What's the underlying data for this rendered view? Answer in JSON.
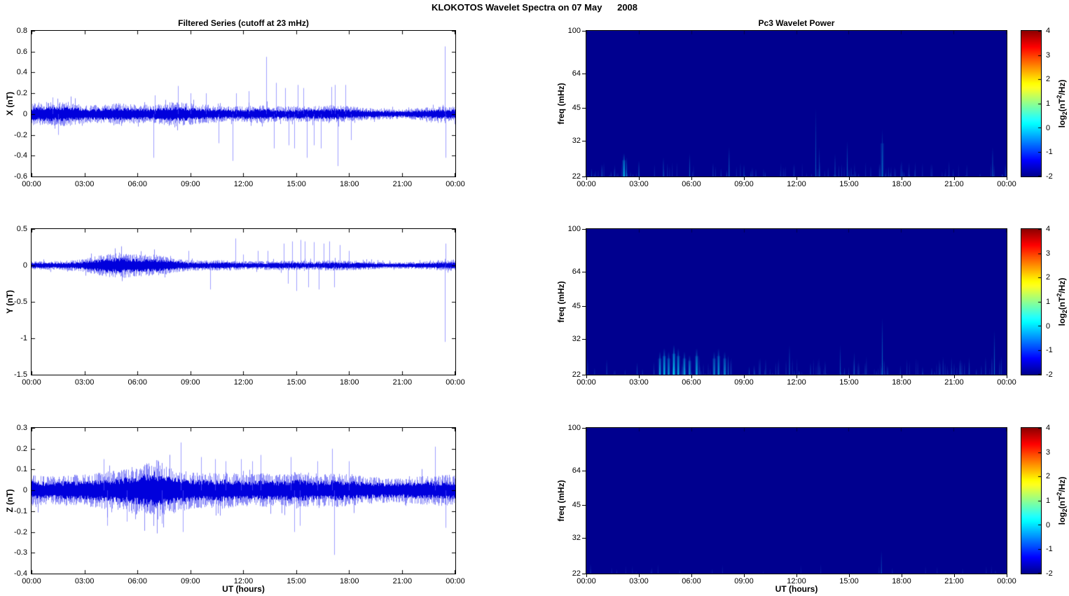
{
  "figure_title": "KLOKOTOS Wavelet Spectra on 07 May      2008",
  "left_column_title": "Filtered Series (cutoff at 23 mHz)",
  "right_column_title": "Pc3 Wavelet Power",
  "x_axis": {
    "label": "UT (hours)",
    "tick_hours": [
      0,
      3,
      6,
      9,
      12,
      15,
      18,
      21,
      24
    ],
    "tick_labels": [
      "00:00",
      "03:00",
      "06:00",
      "09:00",
      "12:00",
      "15:00",
      "18:00",
      "21:00",
      "00:00"
    ],
    "range_hours": [
      0,
      24
    ]
  },
  "colorbar": {
    "colormap": "jet",
    "range": [
      -2,
      4
    ],
    "tick_labels": [
      "4",
      "3",
      "2",
      "1",
      "0",
      "-1",
      "-2"
    ],
    "label_parts": {
      "prefix": "log",
      "sub": "2",
      "mid": "(nT",
      "sup": "2",
      "suffix": "/Hz)"
    }
  },
  "colors": {
    "series_line": "#0000EE",
    "spike_line": "#6060FF",
    "spectrogram_background": "#00008F",
    "axis": "#000000"
  },
  "chart_data": [
    {
      "type": "line",
      "panel": "X filtered series",
      "ylabel": "X (nT)",
      "ylim": [
        -0.6,
        0.8
      ],
      "ytick_labels": [
        "0.8",
        "0.6",
        "0.4",
        "0.2",
        "0",
        "-0.2",
        "-0.4",
        "-0.6"
      ],
      "x_range_hours": [
        0,
        24
      ],
      "noise_envelope": {
        "hours": [
          0,
          1,
          2,
          3,
          4,
          5,
          6,
          7,
          8,
          9,
          10,
          11,
          12,
          13,
          14,
          15,
          16,
          17,
          18,
          19,
          20,
          21,
          22,
          23,
          24
        ],
        "amplitude_nT": [
          0.07,
          0.08,
          0.08,
          0.06,
          0.06,
          0.07,
          0.06,
          0.06,
          0.08,
          0.07,
          0.06,
          0.05,
          0.05,
          0.06,
          0.05,
          0.05,
          0.05,
          0.06,
          0.05,
          0.04,
          0.035,
          0.03,
          0.04,
          0.05,
          0.05
        ]
      },
      "spikes_nT": [
        [
          1.2,
          0.16
        ],
        [
          1.5,
          -0.2
        ],
        [
          6.9,
          -0.42
        ],
        [
          7.0,
          0.18
        ],
        [
          8.3,
          0.27
        ],
        [
          9.0,
          0.2
        ],
        [
          9.9,
          0.2
        ],
        [
          10.6,
          -0.28
        ],
        [
          11.4,
          -0.45
        ],
        [
          11.6,
          0.2
        ],
        [
          12.3,
          0.22
        ],
        [
          13.3,
          0.55
        ],
        [
          13.75,
          -0.33
        ],
        [
          13.85,
          0.3
        ],
        [
          14.4,
          0.25
        ],
        [
          14.6,
          -0.3
        ],
        [
          14.9,
          -0.33
        ],
        [
          15.1,
          0.28
        ],
        [
          15.4,
          0.25
        ],
        [
          15.6,
          -0.42
        ],
        [
          16.0,
          -0.3
        ],
        [
          16.4,
          -0.33
        ],
        [
          17.0,
          0.26
        ],
        [
          17.2,
          0.28
        ],
        [
          17.35,
          -0.5
        ],
        [
          17.8,
          0.28
        ],
        [
          18.1,
          -0.25
        ],
        [
          23.45,
          0.65
        ],
        [
          23.5,
          -0.42
        ]
      ]
    },
    {
      "type": "line",
      "panel": "Y filtered series",
      "ylabel": "Y (nT)",
      "ylim": [
        -1.5,
        0.5
      ],
      "ytick_labels": [
        "0.5",
        "0",
        "-0.5",
        "-1",
        "-1.5"
      ],
      "x_range_hours": [
        0,
        24
      ],
      "noise_envelope": {
        "hours": [
          0,
          1,
          2,
          3,
          4,
          5,
          6,
          7,
          8,
          9,
          10,
          11,
          12,
          13,
          14,
          15,
          16,
          17,
          18,
          19,
          20,
          21,
          22,
          23,
          24
        ],
        "amplitude_nT": [
          0.04,
          0.04,
          0.045,
          0.06,
          0.1,
          0.12,
          0.1,
          0.1,
          0.07,
          0.05,
          0.045,
          0.05,
          0.04,
          0.04,
          0.045,
          0.045,
          0.04,
          0.05,
          0.045,
          0.04,
          0.03,
          0.03,
          0.035,
          0.045,
          0.05
        ]
      },
      "spikes_nT": [
        [
          8.9,
          0.2
        ],
        [
          10.15,
          -0.33
        ],
        [
          11.55,
          0.37
        ],
        [
          12.0,
          0.15
        ],
        [
          12.85,
          0.2
        ],
        [
          13.4,
          0.2
        ],
        [
          14.3,
          0.3
        ],
        [
          14.55,
          -0.25
        ],
        [
          14.8,
          0.33
        ],
        [
          15.0,
          -0.35
        ],
        [
          15.25,
          0.35
        ],
        [
          15.5,
          0.33
        ],
        [
          15.7,
          -0.3
        ],
        [
          16.0,
          0.32
        ],
        [
          16.3,
          -0.33
        ],
        [
          16.55,
          0.3
        ],
        [
          16.9,
          0.33
        ],
        [
          17.15,
          -0.3
        ],
        [
          17.5,
          0.28
        ],
        [
          18.0,
          0.2
        ],
        [
          23.45,
          -1.05
        ],
        [
          23.5,
          0.3
        ]
      ]
    },
    {
      "type": "line",
      "panel": "Z filtered series",
      "ylabel": "Z (nT)",
      "xlabel": "UT (hours)",
      "ylim": [
        -0.4,
        0.3
      ],
      "ytick_labels": [
        "0.3",
        "0.2",
        "0.1",
        "0",
        "-0.1",
        "-0.2",
        "-0.3",
        "-0.4"
      ],
      "x_range_hours": [
        0,
        24
      ],
      "noise_envelope": {
        "hours": [
          0,
          1,
          2,
          3,
          4,
          5,
          6,
          7,
          8,
          9,
          10,
          11,
          12,
          13,
          14,
          15,
          16,
          17,
          18,
          19,
          20,
          21,
          22,
          23,
          24
        ],
        "amplitude_nT": [
          0.05,
          0.045,
          0.05,
          0.05,
          0.06,
          0.065,
          0.08,
          0.1,
          0.075,
          0.06,
          0.055,
          0.06,
          0.05,
          0.055,
          0.05,
          0.06,
          0.05,
          0.055,
          0.05,
          0.045,
          0.04,
          0.04,
          0.045,
          0.05,
          0.05
        ]
      },
      "spikes_nT": [
        [
          4.1,
          0.15
        ],
        [
          4.3,
          -0.17
        ],
        [
          5.4,
          -0.15
        ],
        [
          7.4,
          -0.16
        ],
        [
          8.45,
          0.23
        ],
        [
          8.6,
          -0.2
        ],
        [
          9.6,
          0.16
        ],
        [
          10.4,
          0.15
        ],
        [
          11.0,
          0.14
        ],
        [
          11.9,
          0.15
        ],
        [
          12.5,
          0.14
        ],
        [
          13.0,
          0.17
        ],
        [
          14.7,
          0.16
        ],
        [
          14.9,
          -0.2
        ],
        [
          15.2,
          -0.17
        ],
        [
          16.2,
          0.14
        ],
        [
          17.05,
          0.2
        ],
        [
          17.15,
          -0.31
        ],
        [
          18.0,
          0.14
        ],
        [
          22.9,
          0.21
        ],
        [
          23.5,
          -0.18
        ]
      ]
    },
    {
      "type": "heatmap",
      "panel": "X Pc3 wavelet power",
      "ylabel": "freq (mHz)",
      "yscale": "log",
      "ylim_mHz": [
        22,
        100
      ],
      "ytick_labels": [
        "100",
        "64",
        "45",
        "32",
        "22"
      ],
      "x_range_hours": [
        0,
        24
      ],
      "value_range_log2": [
        -2,
        4
      ],
      "background_value_log2": -2,
      "texture": {
        "count": 110,
        "max_intensity": 0.22,
        "max_freq": 26
      },
      "streaks": [
        [
          0.3,
          24,
          0.25
        ],
        [
          0.9,
          25,
          0.3
        ],
        [
          1.6,
          24,
          0.25
        ],
        [
          2.15,
          28,
          0.8
        ],
        [
          2.3,
          27,
          0.5
        ],
        [
          3.0,
          26,
          0.4
        ],
        [
          4.4,
          27,
          0.35
        ],
        [
          5.9,
          28,
          0.4
        ],
        [
          8.15,
          30,
          0.45
        ],
        [
          9.0,
          25,
          0.3
        ],
        [
          13.1,
          45,
          0.35
        ],
        [
          13.3,
          30,
          0.3
        ],
        [
          14.2,
          28,
          0.3
        ],
        [
          14.9,
          32,
          0.4
        ],
        [
          16.9,
          36,
          0.55
        ],
        [
          18.0,
          26,
          0.25
        ],
        [
          23.2,
          30,
          0.4
        ]
      ]
    },
    {
      "type": "heatmap",
      "panel": "Y Pc3 wavelet power",
      "ylabel": "freq (mHz)",
      "yscale": "log",
      "ylim_mHz": [
        22,
        100
      ],
      "ytick_labels": [
        "100",
        "64",
        "45",
        "32",
        "22"
      ],
      "x_range_hours": [
        0,
        24
      ],
      "value_range_log2": [
        -2,
        4
      ],
      "background_value_log2": -2,
      "texture": {
        "count": 130,
        "max_intensity": 0.25,
        "max_freq": 27
      },
      "streaks": [
        [
          2.9,
          25,
          0.3
        ],
        [
          4.2,
          28,
          0.7
        ],
        [
          4.45,
          29,
          0.85
        ],
        [
          4.7,
          28,
          0.7
        ],
        [
          5.0,
          30,
          0.95
        ],
        [
          5.25,
          29,
          0.8
        ],
        [
          5.6,
          28,
          0.7
        ],
        [
          5.9,
          27,
          0.6
        ],
        [
          6.3,
          29,
          0.8
        ],
        [
          7.3,
          28,
          0.6
        ],
        [
          7.55,
          29,
          0.7
        ],
        [
          7.9,
          28,
          0.6
        ],
        [
          8.1,
          27,
          0.5
        ],
        [
          9.3,
          24,
          0.3
        ],
        [
          11.6,
          30,
          0.4
        ],
        [
          12.8,
          25,
          0.25
        ],
        [
          14.5,
          30,
          0.35
        ],
        [
          15.3,
          28,
          0.3
        ],
        [
          16.9,
          40,
          0.5
        ],
        [
          19.2,
          24,
          0.2
        ],
        [
          21.0,
          25,
          0.2
        ],
        [
          23.3,
          35,
          0.45
        ]
      ]
    },
    {
      "type": "heatmap",
      "panel": "Z Pc3 wavelet power",
      "ylabel": "freq (mHz)",
      "xlabel": "UT (hours)",
      "yscale": "log",
      "ylim_mHz": [
        22,
        100
      ],
      "ytick_labels": [
        "100",
        "64",
        "45",
        "32",
        "22"
      ],
      "x_range_hours": [
        0,
        24
      ],
      "value_range_log2": [
        -2,
        4
      ],
      "background_value_log2": -2,
      "texture": {
        "count": 25,
        "max_intensity": 0.1,
        "max_freq": 24.5
      },
      "streaks": [
        [
          16.85,
          28,
          0.3
        ]
      ]
    }
  ]
}
